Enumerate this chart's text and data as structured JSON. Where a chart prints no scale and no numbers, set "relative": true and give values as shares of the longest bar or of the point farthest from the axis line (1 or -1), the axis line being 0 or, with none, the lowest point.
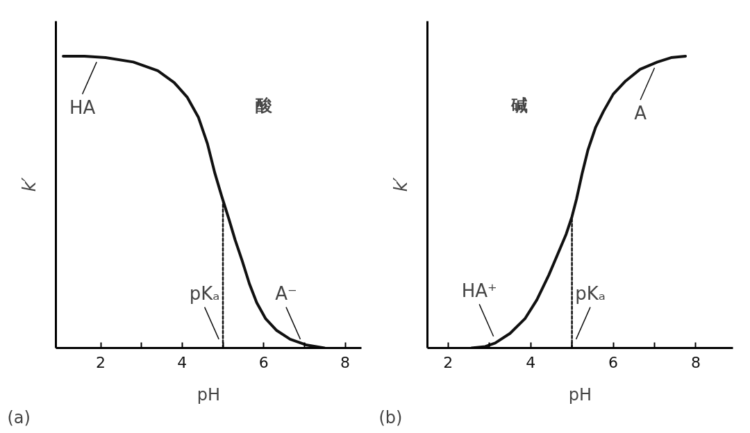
{
  "chart_data": [
    {
      "type": "line",
      "title": "(a)",
      "xlabel": "pH",
      "ylabel": "k′",
      "relative": true,
      "grid": false,
      "marker": "none",
      "xlim": [
        0.9,
        8.4
      ],
      "xticks": [
        2,
        {
          "value": 3,
          "label": null
        },
        4,
        {
          "value": 5,
          "label": null
        },
        6,
        {
          "value": 7,
          "label": null
        },
        8
      ],
      "series": [
        {
          "color": "#111111",
          "line_style": "solid",
          "x": [
            1.08,
            1.6,
            2.12,
            2.8,
            3.4,
            3.8,
            4.12,
            4.4,
            4.62,
            4.8,
            4.97,
            5.15,
            5.3,
            5.47,
            5.65,
            5.83,
            6.05,
            6.32,
            6.65,
            7.06,
            7.49
          ],
          "values": [
            1.0,
            1.0,
            0.995,
            0.98,
            0.95,
            0.91,
            0.86,
            0.79,
            0.7,
            0.6,
            0.52,
            0.44,
            0.37,
            0.3,
            0.22,
            0.155,
            0.1,
            0.06,
            0.03,
            0.01,
            0.0
          ]
        },
        {
          "color": "#111111",
          "line_style": "dashed",
          "x": [
            5,
            5
          ],
          "values": [
            0,
            0.5
          ]
        }
      ],
      "annotations": [
        "酸",
        {
          "text": "HA",
          "x": 2.0,
          "y": 0.99
        },
        {
          "text": "pKₐ",
          "x": 5,
          "y": 0.02
        },
        {
          "text": "A⁻",
          "x": 7.0,
          "y": 0.02
        }
      ]
    },
    {
      "type": "line",
      "title": "(b)",
      "xlabel": "pH",
      "ylabel": "k′",
      "relative": true,
      "grid": false,
      "marker": "none",
      "xlim": [
        1.5,
        8.9
      ],
      "xticks": [
        2,
        {
          "value": 3,
          "label": null
        },
        4,
        {
          "value": 5,
          "label": null
        },
        6,
        {
          "value": 7,
          "label": null
        },
        8
      ],
      "series": [
        {
          "color": "#111111",
          "line_style": "solid",
          "x": [
            2.57,
            2.9,
            3.14,
            3.5,
            3.86,
            4.15,
            4.44,
            4.65,
            4.86,
            5.0,
            5.11,
            5.25,
            5.39,
            5.57,
            5.76,
            6.0,
            6.3,
            6.65,
            7.07,
            7.4,
            7.75
          ],
          "values": [
            0.0,
            0.005,
            0.017,
            0.05,
            0.1,
            0.165,
            0.25,
            0.32,
            0.39,
            0.45,
            0.51,
            0.6,
            0.68,
            0.755,
            0.81,
            0.87,
            0.915,
            0.955,
            0.98,
            0.995,
            1.0
          ]
        },
        {
          "color": "#111111",
          "line_style": "dashed",
          "x": [
            5,
            5
          ],
          "values": [
            0,
            0.45
          ]
        }
      ],
      "annotations": [
        "碱",
        {
          "text": "HA⁺",
          "x": 3.2,
          "y": 0.03
        },
        {
          "text": "pKₐ",
          "x": 5,
          "y": 0.02
        },
        {
          "text": "A",
          "x": 7.1,
          "y": 0.97
        }
      ]
    }
  ]
}
